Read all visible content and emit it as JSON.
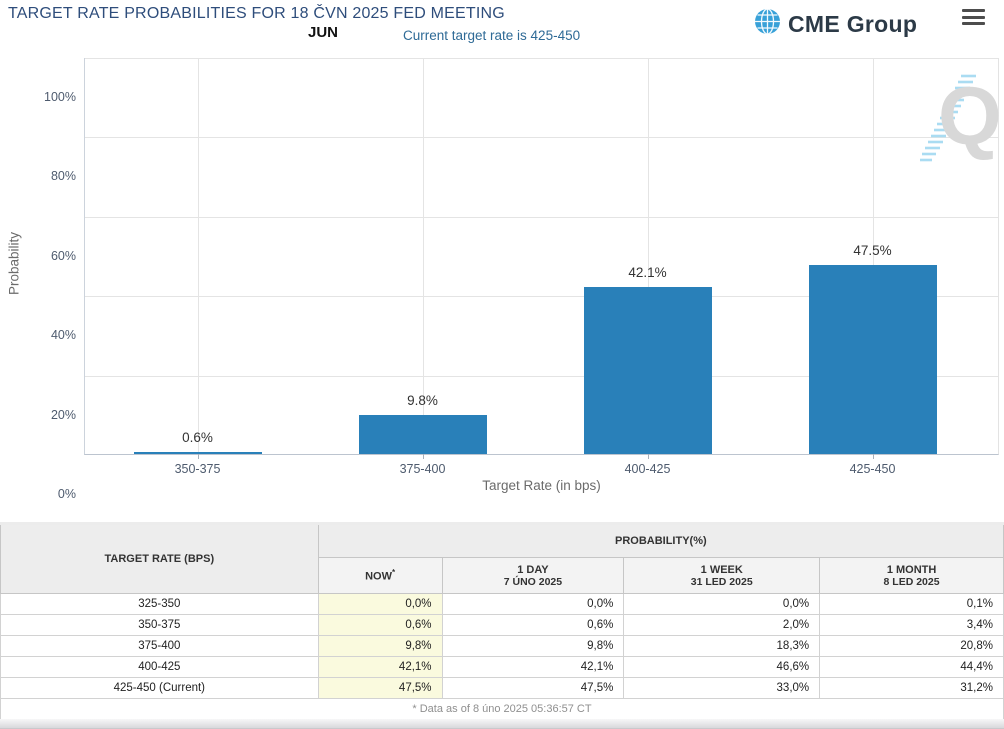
{
  "header": {
    "title": "TARGET RATE PROBABILITIES FOR 18 ČVN 2025 FED MEETING",
    "month_label": "JUN",
    "subtitle": "Current target rate is 425-450",
    "brand": "CME Group"
  },
  "colors": {
    "bar": "#2980b9",
    "title": "#2e4d7b",
    "subtitle": "#2e6a96",
    "brand_navy": "#2c3a47",
    "globe_blue": "#38a1d8",
    "now_column_bg": "#fafade"
  },
  "chart_data": {
    "type": "bar",
    "title": "",
    "categories": [
      "350-375",
      "375-400",
      "400-425",
      "425-450"
    ],
    "values": [
      0.6,
      9.8,
      42.1,
      47.5
    ],
    "labels": [
      "0.6%",
      "9.8%",
      "42.1%",
      "47.5%"
    ],
    "xlabel": "Target Rate (in bps)",
    "ylabel": "Probability",
    "ylim": [
      0,
      100
    ],
    "yticks": [
      "0%",
      "20%",
      "40%",
      "60%",
      "80%",
      "100%"
    ],
    "grid": true,
    "legend": "none",
    "watermark": "Q"
  },
  "table": {
    "col1_header": "TARGET RATE (BPS)",
    "group_header": "PROBABILITY(%)",
    "columns": [
      {
        "label": "NOW",
        "sup": "*",
        "date": ""
      },
      {
        "label": "1 DAY",
        "date": "7 ÚNO 2025"
      },
      {
        "label": "1 WEEK",
        "date": "31 LED 2025"
      },
      {
        "label": "1 MONTH",
        "date": "8 LED 2025"
      }
    ],
    "rows": [
      {
        "rate": "325-350",
        "now": "0,0%",
        "day": "0,0%",
        "week": "0,0%",
        "month": "0,1%"
      },
      {
        "rate": "350-375",
        "now": "0,6%",
        "day": "0,6%",
        "week": "2,0%",
        "month": "3,4%"
      },
      {
        "rate": "375-400",
        "now": "9,8%",
        "day": "9,8%",
        "week": "18,3%",
        "month": "20,8%"
      },
      {
        "rate": "400-425",
        "now": "42,1%",
        "day": "42,1%",
        "week": "46,6%",
        "month": "44,4%"
      },
      {
        "rate": "425-450 (Current)",
        "now": "47,5%",
        "day": "47,5%",
        "week": "33,0%",
        "month": "31,2%"
      }
    ],
    "footnote": "* Data as of 8 úno 2025 05:36:57 CT"
  }
}
